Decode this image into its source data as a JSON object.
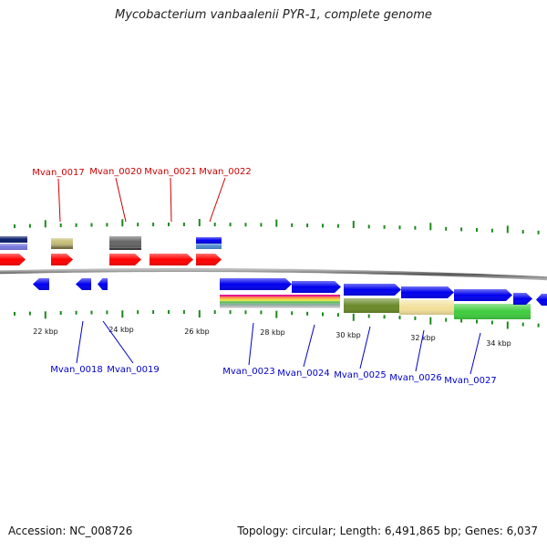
{
  "title": "Mycobacterium vanbaalenii PYR-1, complete genome",
  "footer": {
    "accession": "Accession: NC_008726",
    "topology": "Topology: circular; Length: 6,491,865 bp; Genes: 6,037"
  },
  "colors": {
    "top_strand": "#ff0000",
    "top_label": "#cc0000",
    "bottom_strand": "#0000ee",
    "bottom_label": "#0000cc",
    "tick": "#1a8a1a",
    "backbone": "#666666"
  },
  "axis": {
    "tick_labels": [
      "22 kbp",
      "24 kbp",
      "26 kbp",
      "28 kbp",
      "30 kbp",
      "32 kbp",
      "34 kbp"
    ]
  },
  "genes_top": [
    "Mvan_0017",
    "Mvan_0020",
    "Mvan_0021",
    "Mvan_0022"
  ],
  "genes_bottom": [
    "Mvan_0018",
    "Mvan_0019",
    "Mvan_0023",
    "Mvan_0024",
    "Mvan_0025",
    "Mvan_0026",
    "Mvan_0027"
  ]
}
